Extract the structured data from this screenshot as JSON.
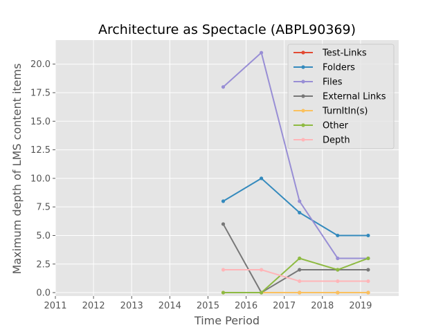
{
  "chart_data": {
    "type": "line",
    "title": "Architecture as Spectacle (ABPL90369)",
    "xlabel": "Time Period",
    "ylabel": "Maximum depth of LMS content items",
    "xlim": [
      2011,
      2020
    ],
    "ylim": [
      -0.3,
      22.1
    ],
    "xticks": [
      "2011",
      "2012",
      "2013",
      "2014",
      "2015",
      "2016",
      "2017",
      "2018",
      "2019"
    ],
    "yticks": [
      "0.0",
      "2.5",
      "5.0",
      "7.5",
      "10.0",
      "12.5",
      "15.0",
      "17.5",
      "20.0"
    ],
    "grid": true,
    "legend_position": "top-right",
    "x": [
      2015.4,
      2016.4,
      2017.4,
      2018.4,
      2019.2
    ],
    "series": [
      {
        "name": "Test-Links",
        "color": "#E24A33",
        "values": [
          0,
          0,
          0,
          0,
          0
        ]
      },
      {
        "name": "Folders",
        "color": "#348ABD",
        "values": [
          8,
          10,
          7,
          5,
          5
        ]
      },
      {
        "name": "Files",
        "color": "#988ED5",
        "values": [
          18,
          21,
          8,
          3,
          3
        ]
      },
      {
        "name": "External Links",
        "color": "#777777",
        "values": [
          6,
          0,
          2,
          2,
          2
        ]
      },
      {
        "name": "TurnItIn(s)",
        "color": "#FBC15E",
        "values": [
          0,
          0,
          0,
          0,
          0
        ]
      },
      {
        "name": "Other",
        "color": "#8EBA42",
        "values": [
          0,
          0,
          3,
          2,
          3
        ]
      },
      {
        "name": "Depth",
        "color": "#FFB5B8",
        "values": [
          2,
          2,
          1,
          1,
          1
        ]
      }
    ]
  }
}
